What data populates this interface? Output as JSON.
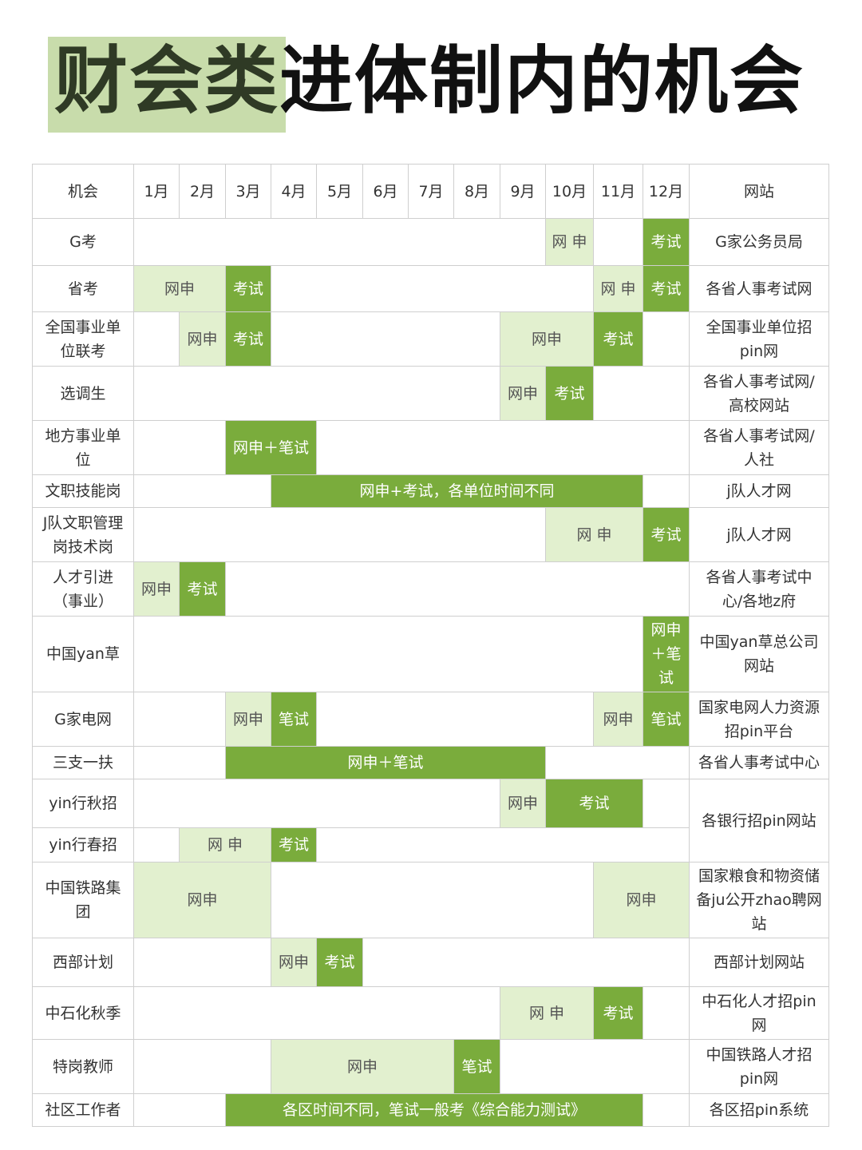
{
  "title": {
    "highlight": "财会类",
    "rest": "进体制内的机会"
  },
  "colors": {
    "light_green": "#e2f0cf",
    "dark_green": "#7aac3c",
    "title_highlight": "#c8dcab"
  },
  "header": {
    "opportunity": "机会",
    "months": [
      "1月",
      "2月",
      "3月",
      "4月",
      "5月",
      "6月",
      "7月",
      "8月",
      "9月",
      "10月",
      "11月",
      "12月"
    ],
    "website": "网站"
  },
  "rows": [
    {
      "name": "G考",
      "website": "G家公务员局",
      "cells": [
        {
          "span": 9
        },
        {
          "text": "网 申",
          "span": 1,
          "tone": "light"
        },
        {
          "span": 1
        },
        {
          "text": "考试",
          "span": 1,
          "tone": "dark"
        }
      ]
    },
    {
      "name": "省考",
      "website": "各省人事考试网",
      "cells": [
        {
          "text": "网申",
          "span": 2,
          "tone": "light"
        },
        {
          "text": "考试",
          "span": 1,
          "tone": "dark"
        },
        {
          "span": 7
        },
        {
          "text": "网 申",
          "span": 1,
          "tone": "light"
        },
        {
          "text": "考试",
          "span": 1,
          "tone": "dark"
        }
      ]
    },
    {
      "name": "全国事业单位联考",
      "website": "全国事业单位招pin网",
      "cells": [
        {
          "span": 1
        },
        {
          "text": "网申",
          "span": 1,
          "tone": "light",
          "vertical": true
        },
        {
          "text": "考试",
          "span": 1,
          "tone": "dark"
        },
        {
          "span": 5
        },
        {
          "text": "网申",
          "span": 2,
          "tone": "light"
        },
        {
          "text": "考试",
          "span": 1,
          "tone": "dark"
        },
        {
          "span": 1
        }
      ]
    },
    {
      "name": "选调生",
      "website": "各省人事考试网/高校网站",
      "cells": [
        {
          "span": 8
        },
        {
          "text": "网申",
          "span": 1,
          "tone": "light",
          "vertical": true
        },
        {
          "text": "考试",
          "span": 1,
          "tone": "dark"
        },
        {
          "span": 2
        }
      ]
    },
    {
      "name": "地方事业单位",
      "website": "各省人事考试网/人社",
      "cells": [
        {
          "span": 2
        },
        {
          "text": "网申＋笔试",
          "span": 2,
          "tone": "dark"
        },
        {
          "span": 8
        }
      ]
    },
    {
      "name": "文职技能岗",
      "website": "j队人才网",
      "cells": [
        {
          "span": 3
        },
        {
          "text": "网申+考试，各单位时间不同",
          "span": 8,
          "tone": "dark"
        },
        {
          "span": 1
        }
      ]
    },
    {
      "name": "J队文职管理岗技术岗",
      "website": "j队人才网",
      "cells": [
        {
          "span": 9
        },
        {
          "text": "网 申",
          "span": 2,
          "tone": "light"
        },
        {
          "text": "考试",
          "span": 1,
          "tone": "dark"
        }
      ]
    },
    {
      "name": "人才引进（事业）",
      "website": "各省人事考试中心/各地z府",
      "cells": [
        {
          "text": "网申",
          "span": 1,
          "tone": "light",
          "vertical": true
        },
        {
          "text": "考试",
          "span": 1,
          "tone": "dark"
        },
        {
          "span": 10
        }
      ]
    },
    {
      "name": "中国yan草",
      "website": "中国yan草总公司网站",
      "cells": [
        {
          "span": 11
        },
        {
          "text": "网申＋笔试",
          "span": 1,
          "tone": "dark",
          "vertical": true
        }
      ]
    },
    {
      "name": "G家电网",
      "website": "国家电网人力资源招pin平台",
      "cells": [
        {
          "span": 2
        },
        {
          "text": "网申",
          "span": 1,
          "tone": "light",
          "vertical": true
        },
        {
          "text": "笔试",
          "span": 1,
          "tone": "dark"
        },
        {
          "span": 6
        },
        {
          "text": "网申",
          "span": 1,
          "tone": "light"
        },
        {
          "text": "笔试",
          "span": 1,
          "tone": "dark"
        }
      ]
    },
    {
      "name": "三支一扶",
      "website": "各省人事考试中心",
      "cells": [
        {
          "span": 2
        },
        {
          "text": "网申＋笔试",
          "span": 7,
          "tone": "dark"
        },
        {
          "span": 3
        }
      ]
    },
    {
      "name": "yin行秋招",
      "website": "各银行招pin网站",
      "website_rowspan": 2,
      "cells": [
        {
          "span": 8
        },
        {
          "text": "网申",
          "span": 1,
          "tone": "light",
          "vertical": true
        },
        {
          "text": "考试",
          "span": 2,
          "tone": "dark"
        },
        {
          "span": 1
        }
      ]
    },
    {
      "name": "yin行春招",
      "cells": [
        {
          "span": 1
        },
        {
          "text": "网 申",
          "span": 2,
          "tone": "light"
        },
        {
          "text": "考试",
          "span": 1,
          "tone": "dark"
        },
        {
          "span": 8
        }
      ]
    },
    {
      "name": "中国铁路集团",
      "website": "国家粮食和物资储备ju公开zhao聘网站",
      "cells": [
        {
          "text": "网申",
          "span": 3,
          "tone": "light"
        },
        {
          "span": 7
        },
        {
          "text": "网申",
          "span": 2,
          "tone": "light"
        }
      ]
    },
    {
      "name": "西部计划",
      "website": "西部计划网站",
      "cells": [
        {
          "span": 3
        },
        {
          "text": "网申",
          "span": 1,
          "tone": "light",
          "vertical": true
        },
        {
          "text": "考试",
          "span": 1,
          "tone": "dark"
        },
        {
          "span": 7
        }
      ]
    },
    {
      "name": "中石化秋季",
      "website": "中石化人才招pin网",
      "cells": [
        {
          "span": 8
        },
        {
          "text": "网 申",
          "span": 2,
          "tone": "light"
        },
        {
          "text": "考试",
          "span": 1,
          "tone": "dark"
        },
        {
          "span": 1
        }
      ]
    },
    {
      "name": "特岗教师",
      "website": "中国铁路人才招pin网",
      "cells": [
        {
          "span": 3
        },
        {
          "text": "网申",
          "span": 4,
          "tone": "light"
        },
        {
          "text": "笔试",
          "span": 1,
          "tone": "dark"
        },
        {
          "span": 4
        }
      ]
    },
    {
      "name": "社区工作者",
      "website": "各区招pin系统",
      "cells": [
        {
          "span": 2
        },
        {
          "text": "各区时间不同，笔试一般考《综合能力测试》",
          "span": 9,
          "tone": "dark"
        },
        {
          "span": 1
        }
      ]
    }
  ]
}
